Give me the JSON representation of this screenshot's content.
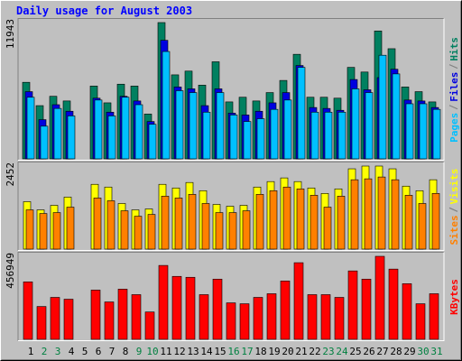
{
  "chart_data": [
    {
      "type": "bar",
      "title": "Daily usage for August 2003",
      "categories": [
        "1",
        "2",
        "3",
        "4",
        "5",
        "6",
        "7",
        "8",
        "9",
        "10",
        "11",
        "12",
        "13",
        "14",
        "15",
        "16",
        "17",
        "18",
        "19",
        "20",
        "21",
        "22",
        "23",
        "24",
        "25",
        "26",
        "27",
        "28",
        "29",
        "30",
        "31"
      ],
      "label_colors": [
        "#000000",
        "#008040",
        "#008040",
        "#000000",
        "#000000",
        "#000000",
        "#000000",
        "#000000",
        "#008040",
        "#008040",
        "#000000",
        "#000000",
        "#000000",
        "#000000",
        "#000000",
        "#008040",
        "#008040",
        "#000000",
        "#000000",
        "#000000",
        "#000000",
        "#000000",
        "#008040",
        "#008040",
        "#000000",
        "#000000",
        "#000000",
        "#000000",
        "#000000",
        "#008040",
        "#008040"
      ],
      "ylim": [
        0,
        11943
      ],
      "yticks": [
        11943
      ],
      "series": [
        {
          "name": "Hits",
          "color": "#008060",
          "values": [
            6708,
            4663,
            5481,
            5072,
            0,
            6381,
            4908,
            6544,
            6381,
            3927,
            11943,
            7362,
            7690,
            6462,
            8507,
            4990,
            5399,
            5072,
            5808,
            6871,
            9162,
            5399,
            5399,
            5317,
            8017,
            7608,
            11207,
            9653,
            6299,
            5890,
            4990
          ]
        },
        {
          "name": "Files",
          "color": "#0000e0",
          "values": [
            5890,
            3436,
            4745,
            4172,
            0,
            5317,
            4090,
            5481,
            5072,
            3272,
            10389,
            6299,
            6135,
            4663,
            6135,
            4008,
            3845,
            4172,
            4908,
            5808,
            8180,
            4499,
            4417,
            4254,
            6953,
            6053,
            7117,
            7853,
            5154,
            5072,
            4499
          ]
        },
        {
          "name": "Pages",
          "color": "#00c0ff",
          "values": [
            5399,
            2863,
            4417,
            3763,
            0,
            5154,
            3763,
            5399,
            4745,
            3027,
            9407,
            5972,
            5808,
            4090,
            5808,
            3845,
            3272,
            3518,
            4336,
            5154,
            8017,
            4090,
            4090,
            4090,
            6135,
            5808,
            9080,
            7444,
            4826,
            4826,
            4336
          ]
        }
      ]
    },
    {
      "type": "bar",
      "ylim": [
        0,
        2452
      ],
      "yticks": [
        2452
      ],
      "series": [
        {
          "name": "Visits",
          "color": "#ffff00",
          "values": [
            1401,
            1159,
            1293,
            1536,
            0,
            1913,
            1832,
            1347,
            1159,
            1186,
            1913,
            1805,
            1967,
            1725,
            1320,
            1266,
            1293,
            1832,
            1994,
            2102,
            1994,
            1805,
            1644,
            1778,
            2371,
            2452,
            2452,
            2371,
            1859,
            1725,
            2048
          ]
        },
        {
          "name": "Sites",
          "color": "#ff8000",
          "values": [
            1159,
            1051,
            1078,
            1239,
            0,
            1509,
            1428,
            1132,
            970,
            1024,
            1563,
            1509,
            1617,
            1347,
            1078,
            1078,
            1132,
            1617,
            1725,
            1832,
            1778,
            1590,
            1239,
            1563,
            2048,
            2075,
            2129,
            2048,
            1590,
            1347,
            1644
          ]
        }
      ]
    },
    {
      "type": "bar",
      "ylim": [
        0,
        456949
      ],
      "yticks": [
        456949
      ],
      "series": [
        {
          "name": "KBytes",
          "color": "#ff0000",
          "values": [
            316349,
            180770,
            230984,
            220942,
            0,
            271156,
            205877,
            276177,
            246048,
            150642,
            406734,
            346477,
            341456,
            246048,
            331413,
            200856,
            195835,
            230984,
            251070,
            321370,
            421798,
            246048,
            246048,
            230984,
            376609,
            331413,
            456949,
            386649,
            306306,
            195835,
            251070
          ]
        }
      ]
    }
  ]
}
